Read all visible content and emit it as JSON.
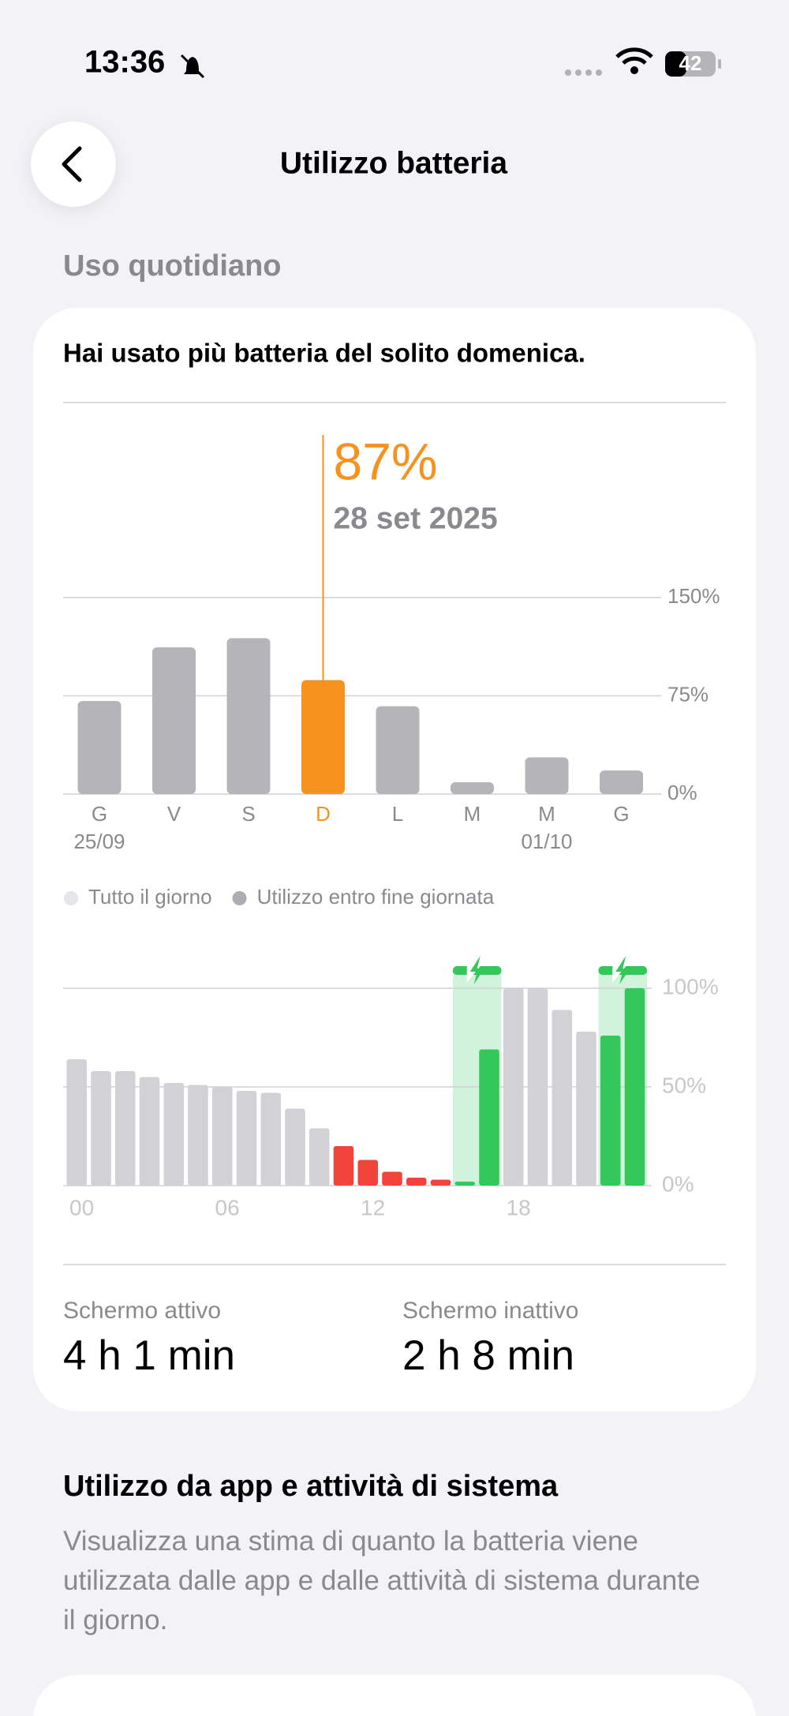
{
  "status_bar": {
    "time": "13:36",
    "battery": "42"
  },
  "header": {
    "title": "Utilizzo batteria"
  },
  "section_title": "Uso quotidiano",
  "summary": "Hai usato più batteria del solito domenica.",
  "chart_data": [
    {
      "type": "bar",
      "categories": [
        "G",
        "V",
        "S",
        "D",
        "L",
        "M",
        "M",
        "G"
      ],
      "sublabels": [
        "25/09",
        null,
        null,
        null,
        null,
        null,
        "01/10",
        null
      ],
      "values": [
        71,
        112,
        119,
        87,
        67,
        9,
        28,
        18
      ],
      "value_labels": [
        null,
        null,
        null,
        "87%",
        null,
        null,
        null,
        null
      ],
      "dates": [
        null,
        null,
        null,
        "28 set 2025",
        null,
        null,
        null,
        null
      ],
      "colors": [
        "#b4b4b9",
        "#b4b4b9",
        "#b4b4b9",
        "#f8921f",
        "#b4b4b9",
        "#b4b4b9",
        "#b4b4b9",
        "#b4b4b9"
      ],
      "ylim": [
        0,
        150
      ],
      "yticks": [
        {
          "value": 0,
          "label": "0%"
        },
        {
          "value": 75,
          "label": "75%"
        },
        {
          "value": 150,
          "label": "150%"
        }
      ],
      "grid": true,
      "legend": [
        {
          "name": "Tutto il giorno",
          "color": "#e5e5ea"
        },
        {
          "name": "Utilizzo entro fine giornata",
          "color": "#aeaeb2"
        }
      ]
    },
    {
      "type": "bar",
      "x": [
        0,
        1,
        2,
        3,
        4,
        5,
        6,
        7,
        8,
        9,
        10,
        11,
        12,
        13,
        14,
        15,
        16,
        17,
        18,
        19,
        20,
        21,
        22,
        23
      ],
      "values": [
        64,
        58,
        58,
        55,
        52,
        51,
        50,
        48,
        47,
        39,
        29,
        20,
        13,
        7,
        4,
        3,
        2,
        69,
        100,
        100,
        89,
        78,
        76,
        100
      ],
      "colors": [
        "#d1d1d6",
        "#d1d1d6",
        "#d1d1d6",
        "#d1d1d6",
        "#d1d1d6",
        "#d1d1d6",
        "#d1d1d6",
        "#d1d1d6",
        "#d1d1d6",
        "#d1d1d6",
        "#d1d1d6",
        "#f2443a",
        "#f2443a",
        "#f2443a",
        "#f2443a",
        "#f2443a",
        "#34c759",
        "#34c759",
        "#d1d1d6",
        "#d1d1d6",
        "#d1d1d6",
        "#d1d1d6",
        "#34c759",
        "#34c759"
      ],
      "xlim": [
        0,
        24
      ],
      "xticks": [
        {
          "value": 0,
          "label": "00"
        },
        {
          "value": 6,
          "label": "06"
        },
        {
          "value": 12,
          "label": "12"
        },
        {
          "value": 18,
          "label": "18"
        }
      ],
      "ylim": [
        0,
        100
      ],
      "yticks": [
        {
          "value": 0,
          "label": "0%"
        },
        {
          "value": 50,
          "label": "50%"
        },
        {
          "value": 100,
          "label": "100%"
        }
      ],
      "grid": true,
      "charging_hours": [
        [
          16,
          18
        ],
        [
          22,
          24
        ]
      ],
      "charging_color": "#34c759"
    }
  ],
  "screen_stats": [
    {
      "label": "Schermo attivo",
      "value": "4 h 1 min"
    },
    {
      "label": "Schermo inattivo",
      "value": "2 h 8 min"
    }
  ],
  "app_section": {
    "title": "Utilizzo da app e attività di sistema",
    "description": "Visualizza una stima di quanto la batteria viene utilizzata dalle app e dalle attività di sistema durante il giorno."
  }
}
